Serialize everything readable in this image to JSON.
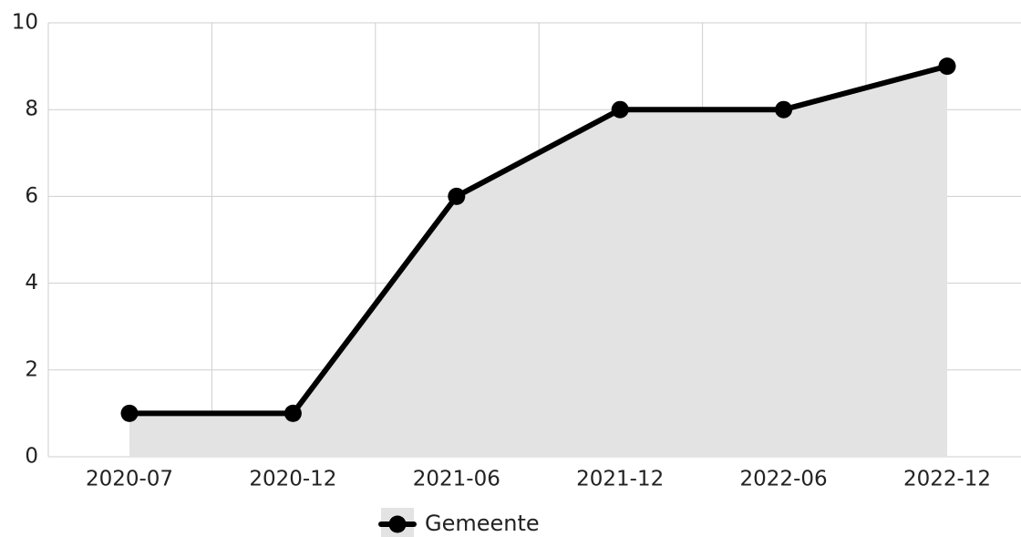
{
  "chart_data": {
    "type": "area",
    "categories": [
      "2020-07",
      "2020-12",
      "2021-06",
      "2021-12",
      "2022-06",
      "2022-12"
    ],
    "series": [
      {
        "name": "Gemeente",
        "values": [
          1,
          1,
          6,
          8,
          8,
          9
        ]
      }
    ],
    "ylim": [
      0,
      10
    ],
    "y_ticks": [
      0,
      2,
      4,
      6,
      8,
      10
    ],
    "grid": true,
    "legend": "bottom-center",
    "colors": {
      "line": "#000000",
      "fill": "#e3e3e3",
      "grid": "#cfcfcf",
      "text": "#222222"
    }
  }
}
